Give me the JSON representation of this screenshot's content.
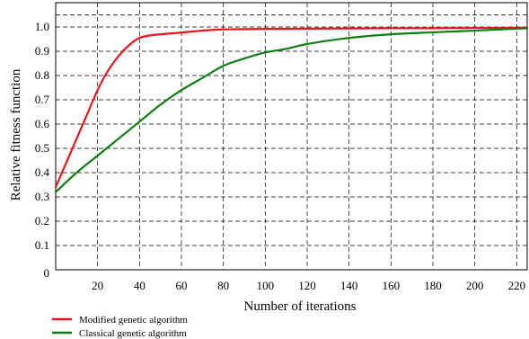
{
  "chart_data": {
    "type": "line",
    "title": "",
    "xlabel": "Number of iterations",
    "ylabel": "Relative fitness function",
    "xlim": [
      0,
      225
    ],
    "ylim": [
      0,
      1.1
    ],
    "x_ticks": [
      "20",
      "40",
      "60",
      "80",
      "100",
      "120",
      "140",
      "160",
      "180",
      "200",
      "220"
    ],
    "y_ticks": [
      "0",
      "0.1",
      "0.2",
      "0.3",
      "0.4",
      "0.5",
      "0.6",
      "0.7",
      "0.8",
      "0.9",
      "1.0"
    ],
    "grid": true,
    "legend_position": "bottom-left",
    "series": [
      {
        "name": "Modified genetic algorithm",
        "color": "#e8141b",
        "x": [
          0,
          5,
          10,
          15,
          20,
          25,
          30,
          35,
          40,
          45,
          50,
          60,
          70,
          80,
          100,
          120,
          140,
          160,
          180,
          200,
          225
        ],
        "y": [
          0.34,
          0.44,
          0.54,
          0.64,
          0.74,
          0.82,
          0.88,
          0.925,
          0.955,
          0.965,
          0.97,
          0.977,
          0.985,
          0.99,
          0.992,
          0.993,
          0.994,
          0.995,
          0.995,
          0.996,
          0.997
        ]
      },
      {
        "name": "Classical genetic algorithm",
        "color": "#0f7d10",
        "x": [
          0,
          10,
          20,
          30,
          40,
          50,
          60,
          70,
          80,
          90,
          100,
          110,
          120,
          140,
          160,
          180,
          200,
          225
        ],
        "y": [
          0.32,
          0.4,
          0.47,
          0.54,
          0.61,
          0.68,
          0.74,
          0.79,
          0.84,
          0.87,
          0.895,
          0.91,
          0.93,
          0.955,
          0.97,
          0.978,
          0.985,
          0.995
        ]
      }
    ]
  }
}
